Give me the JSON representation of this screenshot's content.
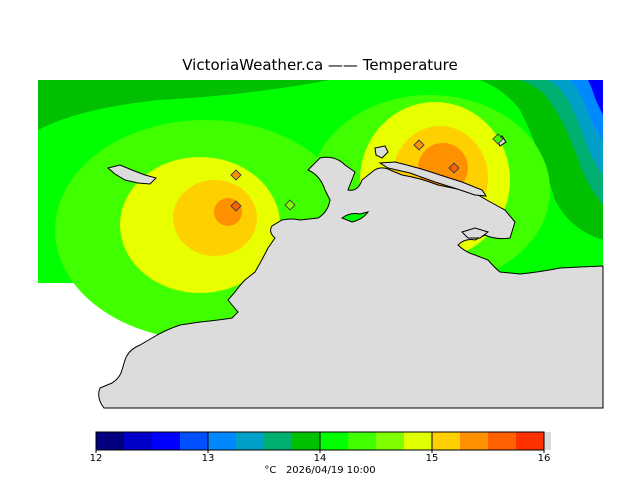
{
  "title": "VictoriaWeather.ca  —— Temperature",
  "legend": {
    "min": 12,
    "max": 16,
    "tick_labels": [
      "12",
      "13",
      "14",
      "15",
      "16"
    ],
    "colors": [
      "#000080",
      "#0000c8",
      "#0000ff",
      "#0050ff",
      "#0088ff",
      "#00a0c8",
      "#00b070",
      "#00c000",
      "#00ff00",
      "#40ff00",
      "#80ff00",
      "#e0ff00",
      "#ffd000",
      "#ff9000",
      "#ff6000",
      "#ff3000",
      "#ff0000"
    ],
    "unit": "°C",
    "timestamp": "2026/04/19 10:00"
  },
  "land_color": "#dcdcdc",
  "station_marker_color": "#e87830"
}
